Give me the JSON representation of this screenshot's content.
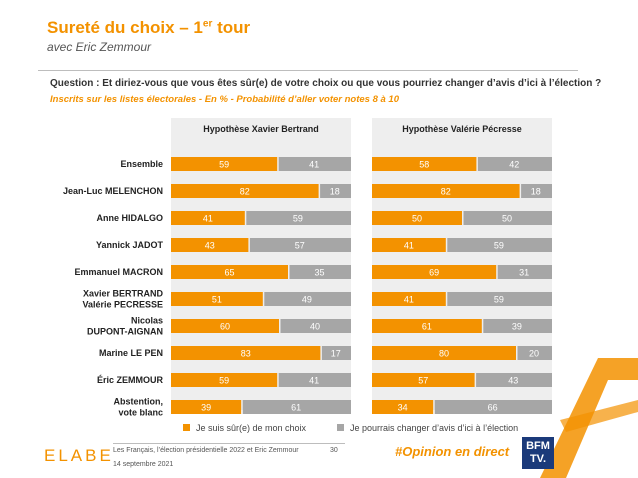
{
  "header": {
    "title_main": "Sureté du choix – 1",
    "title_sup": "er",
    "title_end": " tour",
    "subtitle": "avec Eric Zemmour",
    "question": "Question : Et diriez-vous que vous êtes sûr(e) de votre choix ou que vous pourriez changer d’avis d’ici à l’élection ?",
    "scope": "Inscrits sur les listes électorales - En % - Probabilité d’aller voter notes 8 à 10"
  },
  "colors": {
    "accent": "#f39200",
    "sure": "#f39200",
    "change": "#a6a6a6",
    "panel_bg": "#eeeeee"
  },
  "legend": {
    "sure": "Je suis sûr(e) de mon choix",
    "change": "Je pourrais changer d’avis d’ici à l’élection"
  },
  "footer": {
    "logo": "ELABE",
    "source": "Les Français, l’élection présidentielle 2022 et Eric Zemmour",
    "date": "14 septembre 2021",
    "page": "30",
    "hashtag": "#Opinion en direct",
    "brand_line1": "BFM",
    "brand_line2": "TV."
  },
  "chart_data": {
    "type": "bar",
    "stacked": true,
    "orientation": "horizontal",
    "categories": [
      [
        "Ensemble"
      ],
      [
        "Jean-Luc MELENCHON"
      ],
      [
        "Anne HIDALGO"
      ],
      [
        "Yannick JADOT"
      ],
      [
        "Emmanuel MACRON"
      ],
      [
        "Xavier BERTRAND",
        "Valérie PECRESSE"
      ],
      [
        "Nicolas",
        "DUPONT-AIGNAN"
      ],
      [
        "Marine LE PEN"
      ],
      [
        "Éric ZEMMOUR"
      ],
      [
        "Abstention,",
        "vote blanc"
      ]
    ],
    "panels": [
      {
        "title": "Hypothèse Xavier Bertrand",
        "series": [
          {
            "name": "Je suis sûr(e) de mon choix",
            "values": [
              59,
              82,
              41,
              43,
              65,
              51,
              60,
              83,
              59,
              39
            ]
          },
          {
            "name": "Je pourrais changer d’avis d’ici à l’élection",
            "values": [
              41,
              18,
              59,
              57,
              35,
              49,
              40,
              17,
              41,
              61
            ]
          }
        ]
      },
      {
        "title": "Hypothèse Valérie Pécresse",
        "series": [
          {
            "name": "Je suis sûr(e) de mon choix",
            "values": [
              58,
              82,
              50,
              41,
              69,
              41,
              61,
              80,
              57,
              34
            ]
          },
          {
            "name": "Je pourrais changer d’avis d’ici à l’élection",
            "values": [
              42,
              18,
              50,
              59,
              31,
              59,
              39,
              20,
              43,
              66
            ]
          }
        ]
      }
    ],
    "xlim": [
      0,
      100
    ],
    "unit": "%"
  }
}
